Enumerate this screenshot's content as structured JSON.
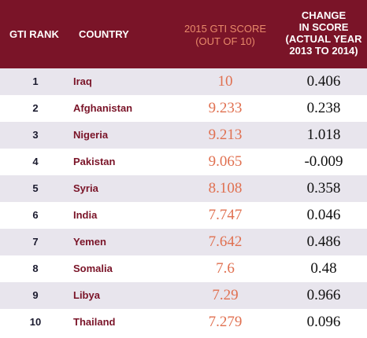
{
  "header": {
    "rank": "GTI RANK",
    "country": "COUNTRY",
    "score_line1": "2015 GTI SCORE",
    "score_line2": "(OUT OF 10)",
    "change_line1": "CHANGE",
    "change_line2": "IN SCORE",
    "change_line3": "(ACTUAL YEAR",
    "change_line4": "2013 TO 2014)"
  },
  "colors": {
    "header_bg": "#7a1428",
    "score_text": "#e07050",
    "country_text": "#7a1428",
    "stripe": "#e8e5ed"
  },
  "rows": [
    {
      "rank": "1",
      "country": "Iraq",
      "score": "10",
      "change": "0.406"
    },
    {
      "rank": "2",
      "country": "Afghanistan",
      "score": "9.233",
      "change": "0.238"
    },
    {
      "rank": "3",
      "country": "Nigeria",
      "score": "9.213",
      "change": "1.018"
    },
    {
      "rank": "4",
      "country": "Pakistan",
      "score": "9.065",
      "change": "-0.009"
    },
    {
      "rank": "5",
      "country": "Syria",
      "score": "8.108",
      "change": "0.358"
    },
    {
      "rank": "6",
      "country": "India",
      "score": "7.747",
      "change": "0.046"
    },
    {
      "rank": "7",
      "country": "Yemen",
      "score": "7.642",
      "change": "0.486"
    },
    {
      "rank": "8",
      "country": "Somalia",
      "score": "7.6",
      "change": "0.48"
    },
    {
      "rank": "9",
      "country": "Libya",
      "score": "7.29",
      "change": "0.966"
    },
    {
      "rank": "10",
      "country": "Thailand",
      "score": "7.279",
      "change": "0.096"
    }
  ]
}
